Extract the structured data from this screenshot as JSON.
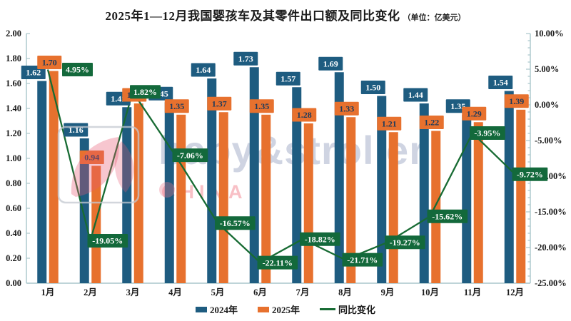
{
  "title": {
    "text": "2025年1—12月我国婴孩车及其零件出口额及同比变化",
    "unit": "（单位：亿美元）"
  },
  "watermark": {
    "brand": "baby&stroller",
    "sub": "CHINA"
  },
  "colors": {
    "bar_2024": "#1e5c80",
    "bar_2025": "#e7712e",
    "line_yoy": "#176b33",
    "green_label_bg": "#13693b",
    "text_on_blue": "#ffffff",
    "text_on_orange": "#1b3a5c",
    "axis": "#a9c6cb",
    "text": "#1a1a1a"
  },
  "legend": {
    "items": [
      {
        "label": "2024年",
        "color_key": "bar_2024",
        "kind": "bar"
      },
      {
        "label": "2025年",
        "color_key": "bar_2025",
        "kind": "bar"
      },
      {
        "label": "同比变化",
        "color_key": "line_yoy",
        "kind": "line"
      }
    ]
  },
  "chart_data": {
    "type": "bar",
    "subtype": "grouped-bars-with-line",
    "title": "2025年1—12月我国婴孩车及其零件出口额及同比变化",
    "unit": "亿美元",
    "categories": [
      "1月",
      "2月",
      "3月",
      "4月",
      "5月",
      "6月",
      "7月",
      "8月",
      "9月",
      "10月",
      "11月",
      "12月"
    ],
    "series": [
      {
        "name": "2024年",
        "type": "bar",
        "axis": "left",
        "values": [
          1.62,
          1.16,
          1.41,
          1.45,
          1.64,
          1.73,
          1.57,
          1.69,
          1.5,
          1.44,
          1.35,
          1.54
        ]
      },
      {
        "name": "2025年",
        "type": "bar",
        "axis": "left",
        "values": [
          1.7,
          0.94,
          1.44,
          1.35,
          1.37,
          1.35,
          1.28,
          1.33,
          1.21,
          1.22,
          1.29,
          1.39
        ]
      },
      {
        "name": "同比变化",
        "type": "line",
        "axis": "right",
        "suffix": "%",
        "values": [
          4.95,
          -19.05,
          1.82,
          -7.06,
          -16.57,
          -22.11,
          -18.82,
          -21.71,
          -19.27,
          -15.62,
          -3.95,
          -9.72
        ]
      }
    ],
    "left_axis": {
      "min": 0,
      "max": 2,
      "step": 0.2,
      "decimals": 2,
      "suffix": ""
    },
    "right_axis": {
      "min": -25,
      "max": 10,
      "step": 5,
      "minor_step": 1,
      "decimals": 2,
      "suffix": "%"
    },
    "grid": false,
    "legend_position": "bottom",
    "data_labels": true
  }
}
